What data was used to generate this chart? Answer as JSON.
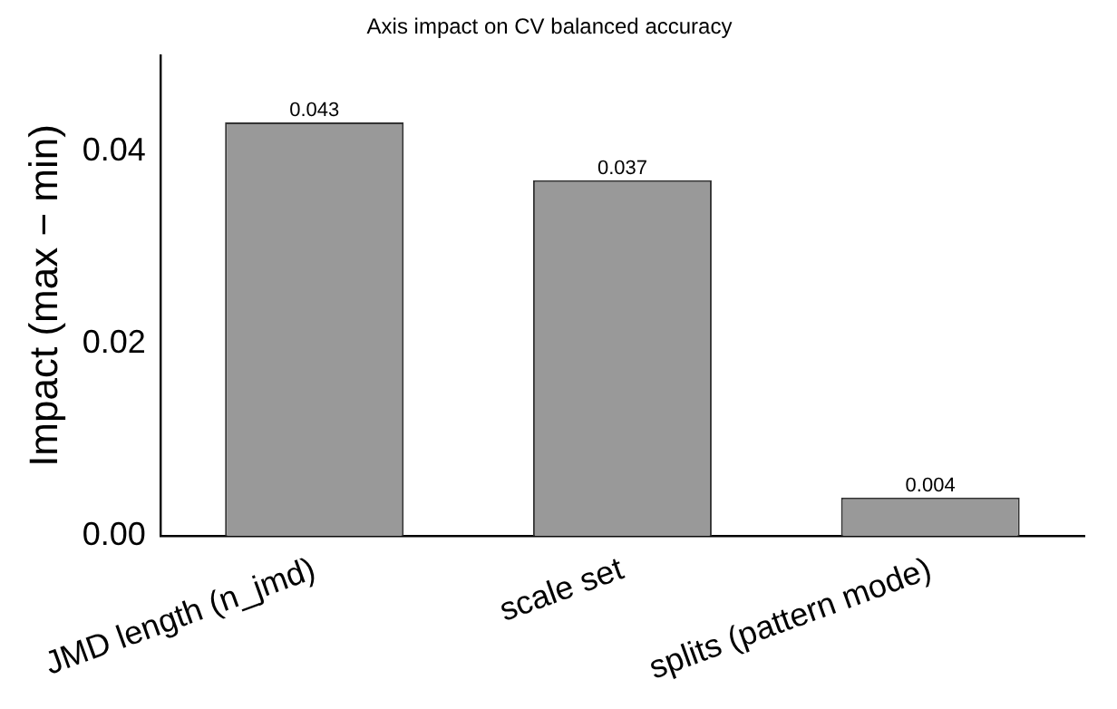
{
  "chart_data": {
    "type": "bar",
    "title": "Axis impact on CV balanced accuracy",
    "ylabel": "Impact (max − min)",
    "categories": [
      "JMD length (n_jmd)",
      "scale set",
      "splits (pattern mode)"
    ],
    "values": [
      0.043,
      0.037,
      0.004
    ],
    "color": "#999999",
    "data_labels": true,
    "ylim": [
      0,
      0.05
    ],
    "yticks": [
      {
        "value": 0,
        "label": "0.00"
      },
      {
        "value": 0.02,
        "label": "0.02"
      },
      {
        "value": 0.04,
        "label": "0.04"
      }
    ],
    "grid": false,
    "legend": false
  }
}
